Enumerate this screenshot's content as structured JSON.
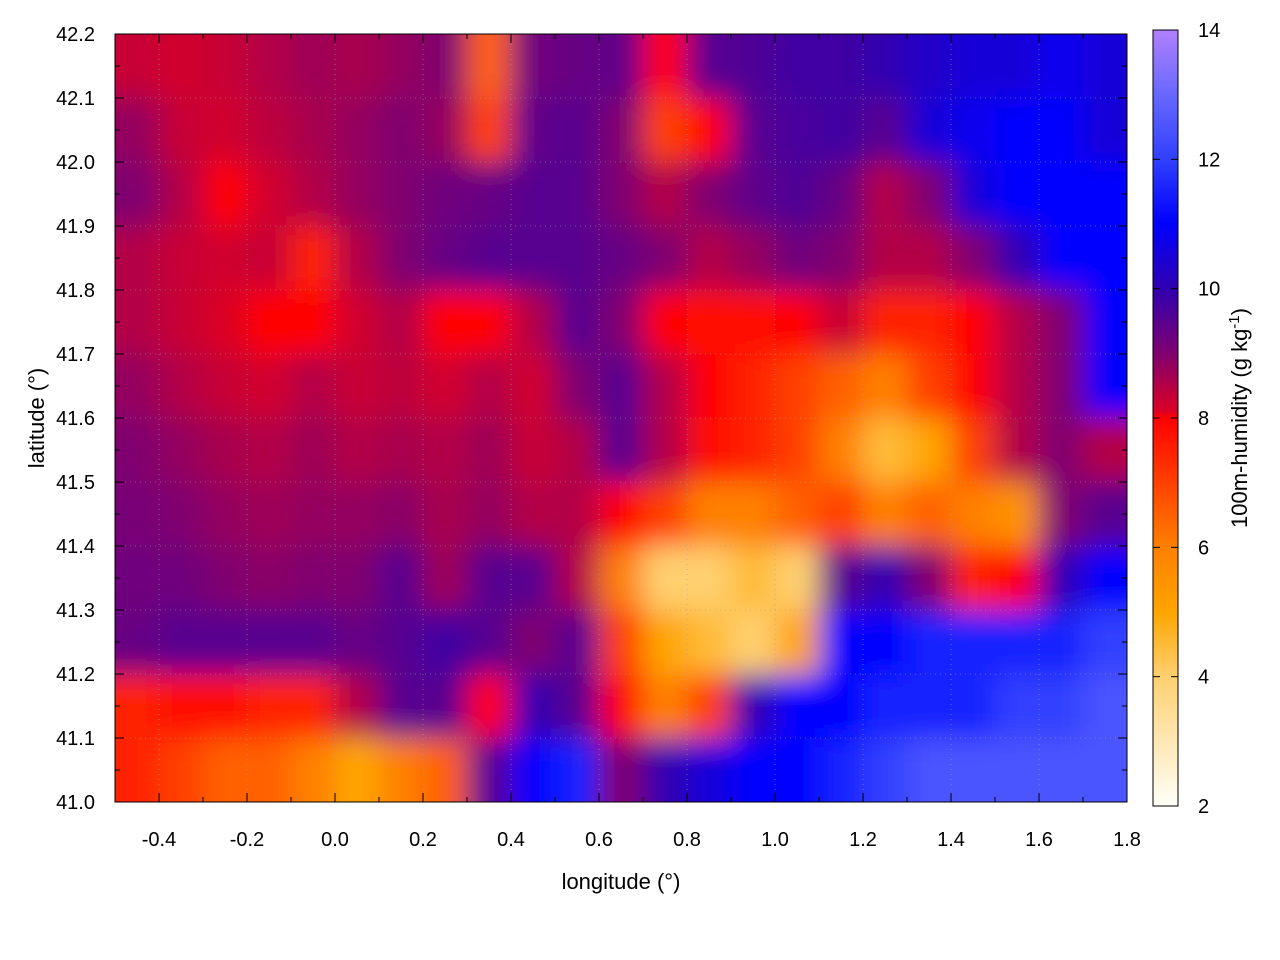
{
  "chart_data": {
    "type": "heatmap",
    "title": "",
    "xlabel": "longitude (°)",
    "ylabel": "latitude (°)",
    "colorbar_label": "100m-humidity (g kg",
    "colorbar_label_sup": "-1",
    "colorbar_label_end": ")",
    "xlim": [
      -0.5,
      1.8
    ],
    "ylim": [
      41.0,
      42.2
    ],
    "clim": [
      2,
      14
    ],
    "x_ticks": [
      "-0.4",
      "-0.2",
      "0.0",
      "0.2",
      "0.4",
      "0.6",
      "0.8",
      "1.0",
      "1.2",
      "1.4",
      "1.6",
      "1.8"
    ],
    "y_ticks": [
      "41.0",
      "41.1",
      "41.2",
      "41.3",
      "41.4",
      "41.5",
      "41.6",
      "41.7",
      "41.8",
      "41.9",
      "42.0",
      "42.1",
      "42.2"
    ],
    "c_ticks": [
      "2",
      "4",
      "6",
      "8",
      "10",
      "12",
      "14"
    ],
    "grid": true,
    "contours": true,
    "colormap": [
      {
        "v": 2,
        "c": "#fffff8"
      },
      {
        "v": 4,
        "c": "#ffd070"
      },
      {
        "v": 5,
        "c": "#ffa500"
      },
      {
        "v": 6,
        "c": "#ff8000"
      },
      {
        "v": 7,
        "c": "#ff4000"
      },
      {
        "v": 8,
        "c": "#ff0000"
      },
      {
        "v": 8.05,
        "c": "#e00020"
      },
      {
        "v": 9,
        "c": "#800070"
      },
      {
        "v": 10,
        "c": "#3000b0"
      },
      {
        "v": 11,
        "c": "#0000ff"
      },
      {
        "v": 12,
        "c": "#3040ff"
      },
      {
        "v": 13,
        "c": "#6868ff"
      },
      {
        "v": 14,
        "c": "#b080ff"
      }
    ],
    "grid_lon": [
      -0.45,
      -0.35,
      -0.25,
      -0.15,
      -0.05,
      0.05,
      0.15,
      0.25,
      0.35,
      0.45,
      0.55,
      0.65,
      0.75,
      0.85,
      0.95,
      1.05,
      1.15,
      1.25,
      1.35,
      1.45,
      1.55,
      1.65,
      1.75
    ],
    "grid_lat": [
      42.15,
      42.05,
      41.95,
      41.85,
      41.75,
      41.65,
      41.55,
      41.45,
      41.35,
      41.25,
      41.15,
      41.05
    ],
    "values": [
      [
        8.3,
        8.2,
        8.3,
        8.5,
        8.7,
        8.6,
        8.8,
        9.0,
        6.5,
        9.2,
        9.3,
        9.4,
        8,
        9.5,
        9.6,
        9.8,
        9.8,
        10,
        10.3,
        10.5,
        10.5,
        10.8,
        10.5
      ],
      [
        8.8,
        8.3,
        8.2,
        8.4,
        8.6,
        8.8,
        9,
        8.8,
        7,
        9.4,
        9.5,
        9,
        7,
        8,
        9.5,
        9.7,
        9.8,
        9.5,
        10.5,
        10.8,
        11,
        11,
        10.5
      ],
      [
        9,
        8.5,
        8,
        8.2,
        8.5,
        8.8,
        9,
        9.2,
        9.3,
        9.5,
        9.5,
        9,
        8.5,
        9,
        9.4,
        9.6,
        9.3,
        8.5,
        9,
        10.5,
        11,
        11,
        11
      ],
      [
        8.5,
        8.3,
        8.2,
        8.3,
        7.5,
        8.5,
        9,
        9.3,
        9.5,
        9.5,
        9.5,
        9.3,
        9,
        8.5,
        8.8,
        9.2,
        9,
        8.5,
        8.5,
        9,
        10,
        11,
        11
      ],
      [
        8.5,
        8.3,
        8.1,
        8,
        8,
        8.2,
        8.5,
        8,
        8,
        8.5,
        9.5,
        9,
        8,
        7.8,
        7.8,
        8,
        8.3,
        7.5,
        7.5,
        8,
        8.5,
        9,
        11
      ],
      [
        8.8,
        8.5,
        8.3,
        8.2,
        8.5,
        8.3,
        8.4,
        8.2,
        8.5,
        8.2,
        9,
        9.5,
        8.5,
        8,
        7.5,
        7,
        6.5,
        6,
        7,
        8,
        8.5,
        9,
        11
      ],
      [
        9,
        8.8,
        8.6,
        8.5,
        8.7,
        8.5,
        8.6,
        8.5,
        8.7,
        8.3,
        8.5,
        9.5,
        8.5,
        7.8,
        7.5,
        7,
        6,
        4.5,
        5,
        7,
        8.5,
        9,
        8.5
      ],
      [
        9.1,
        9,
        8.8,
        8.7,
        8.8,
        8.8,
        8.9,
        8.6,
        8.8,
        8.5,
        8.5,
        8,
        7,
        6,
        6,
        6.5,
        7,
        6,
        6.5,
        6,
        5.5,
        9,
        9.5
      ],
      [
        9.2,
        9.2,
        9,
        8.9,
        9,
        9,
        9.5,
        8.7,
        9.5,
        9.5,
        8.5,
        6,
        4,
        4,
        4.5,
        4,
        9.5,
        10,
        9,
        7.5,
        8,
        10,
        11
      ],
      [
        9.3,
        9.5,
        9.5,
        9.5,
        9.5,
        9.3,
        9.5,
        9.8,
        9.5,
        9,
        9.5,
        7,
        5,
        4.5,
        4,
        5,
        11,
        11,
        11.5,
        11.5,
        11.5,
        11.5,
        12
      ],
      [
        7.5,
        7.8,
        7.8,
        7.5,
        7.5,
        8.5,
        9.5,
        9.5,
        8,
        10,
        9.5,
        8,
        6,
        7,
        10,
        11,
        11,
        11.5,
        11.5,
        11.5,
        12,
        12,
        12.5
      ],
      [
        7.5,
        7,
        6.5,
        6.5,
        6,
        5,
        6,
        6.5,
        9.5,
        11,
        11.5,
        9,
        10,
        10.5,
        11,
        11,
        11.5,
        12,
        12.5,
        12.5,
        12.5,
        12.5,
        12.5
      ]
    ]
  }
}
